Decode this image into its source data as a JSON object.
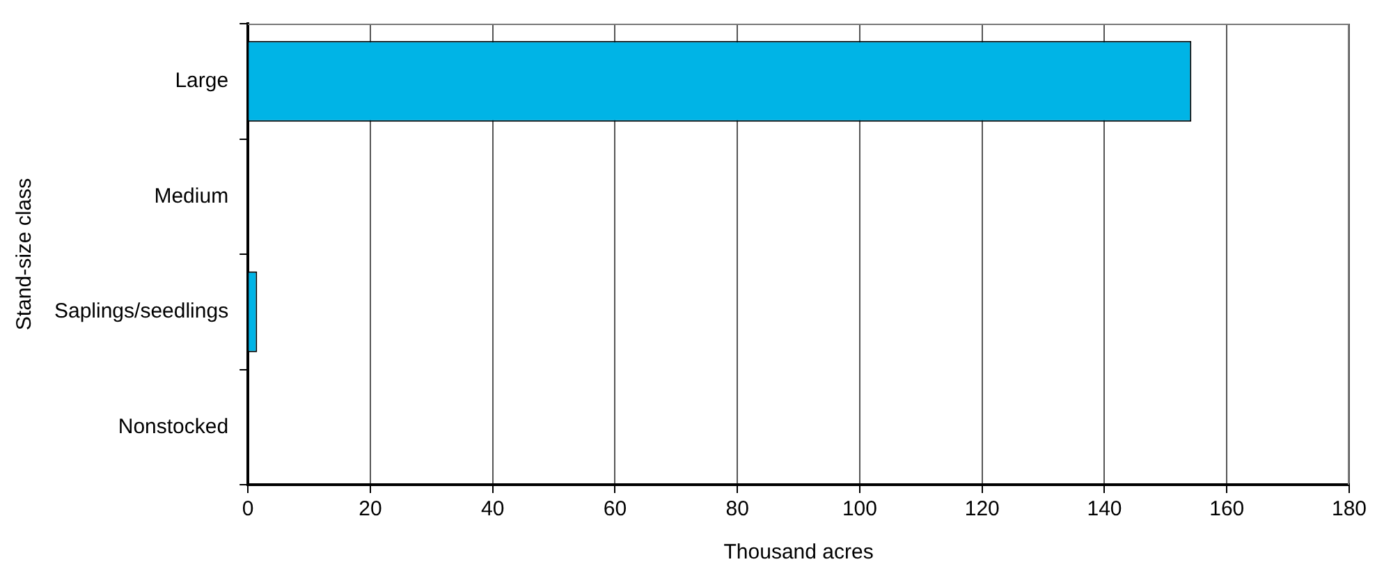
{
  "chart_data": {
    "type": "bar",
    "orientation": "horizontal",
    "xlabel": "Thousand acres",
    "ylabel": "Stand-size class",
    "categories": [
      "Large",
      "Medium",
      "Saplings/seedlings",
      "Nonstocked"
    ],
    "values": [
      154.2,
      0,
      1.5,
      0
    ],
    "color": "#00b4e6",
    "xlim": [
      0,
      180
    ],
    "xticks": [
      0,
      20,
      40,
      60,
      80,
      100,
      120,
      140,
      160,
      180
    ],
    "grid": "x",
    "legend": false
  }
}
